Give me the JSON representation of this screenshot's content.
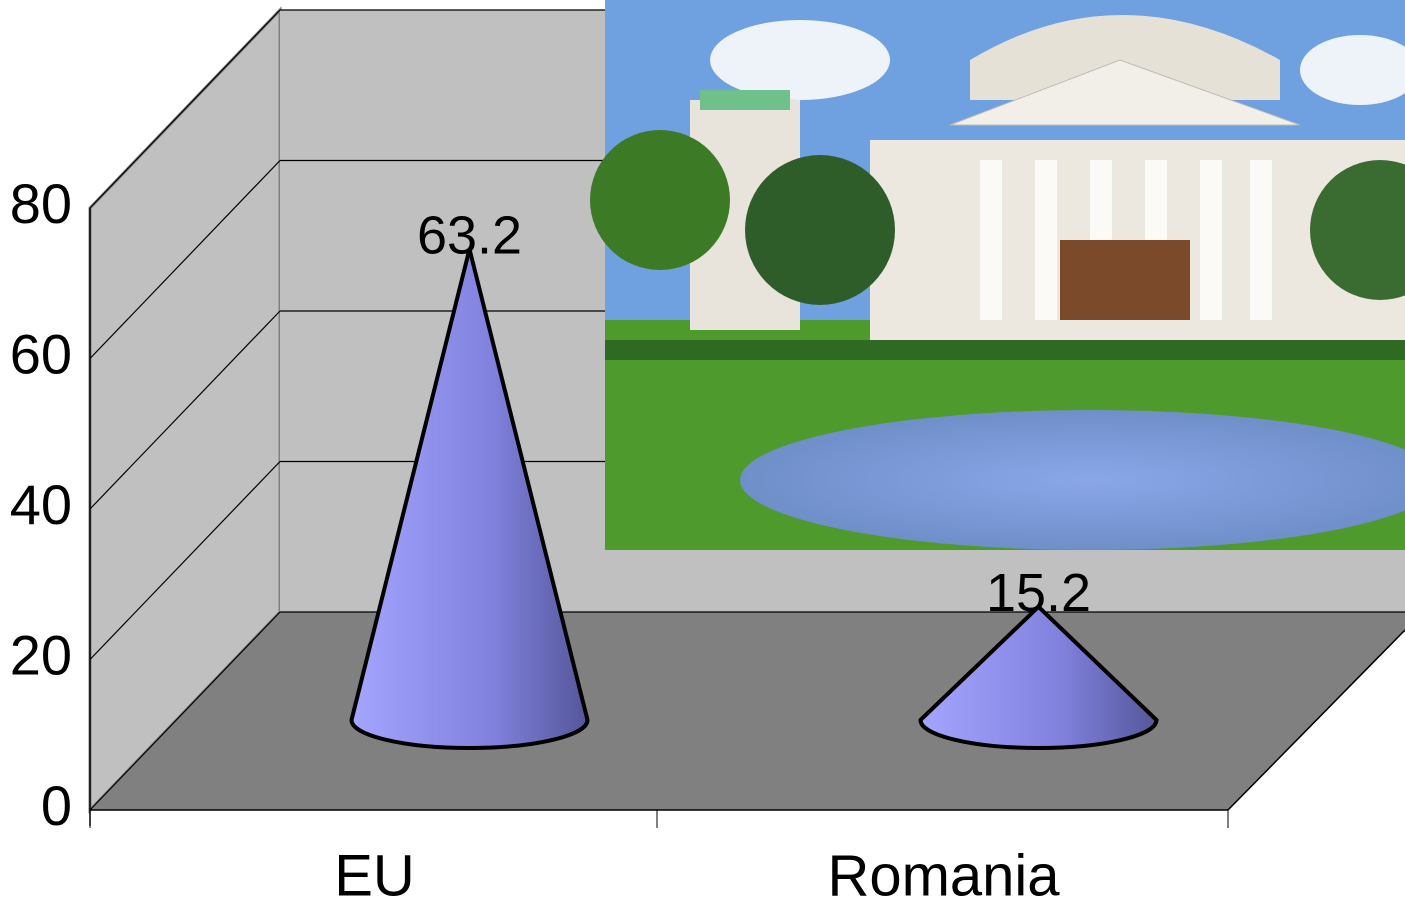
{
  "chart_data": {
    "type": "cone",
    "categories": [
      "EU",
      "Romania"
    ],
    "values": [
      63.2,
      15.2
    ],
    "color": "#8a8cf0",
    "ylim": [
      0,
      80
    ],
    "yticks": [
      0,
      20,
      40,
      60,
      80
    ],
    "grid": true
  }
}
